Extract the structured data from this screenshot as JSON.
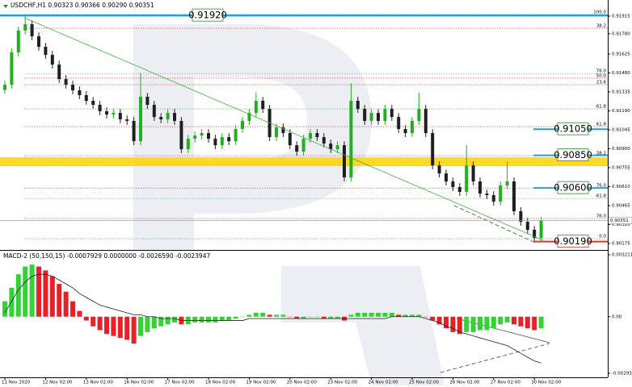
{
  "chart_data": [
    {
      "type": "candlestick",
      "title": "USDCHF,H1  0.90323 0.90366 0.90290 0.90351",
      "categories": [
        "11 Nov 2020",
        null,
        null,
        null,
        null,
        null,
        "12 Nov 02:00",
        null,
        null,
        null,
        null,
        null,
        "13 Nov 02:00",
        null,
        null,
        null,
        null,
        null,
        "16 Nov 02:00",
        null,
        null,
        null,
        null,
        null,
        "17 Nov 02:00",
        null,
        null,
        null,
        null,
        null,
        "18 Nov 02:00",
        null,
        null,
        null,
        null,
        null,
        "19 Nov 02:00",
        null,
        null,
        null,
        null,
        null,
        "20 Nov 02:00",
        null,
        null,
        null,
        null,
        null,
        "23 Nov 02:00",
        null,
        null,
        null,
        null,
        null,
        "24 Nov 02:00",
        null,
        null,
        null,
        null,
        null,
        "25 Nov 02:00",
        null,
        null,
        null,
        null,
        null,
        "26 Nov 02:00",
        null,
        null,
        null,
        null,
        null,
        "27 Nov 02:00",
        null,
        null,
        null,
        null,
        null,
        "30 Nov 02:00",
        null
      ],
      "open": [
        0.9135,
        0.9139,
        0.91637,
        0.91804,
        0.91853,
        0.9176,
        0.9168,
        0.91618,
        0.91544,
        0.91433,
        0.9139,
        0.91347,
        0.9131,
        0.91267,
        0.91236,
        0.91187,
        0.91162,
        0.91174,
        0.91125,
        0.91113,
        0.90958,
        0.91298,
        0.91236,
        0.91143,
        0.91125,
        0.91174,
        0.91113,
        0.90897,
        0.90977,
        0.91001,
        0.9102,
        0.90977,
        0.90927,
        0.90989,
        0.90958,
        0.91051,
        0.91113,
        0.91174,
        0.91267,
        0.91205,
        0.90989,
        0.91063,
        0.9102,
        0.90927,
        0.90878,
        0.90977,
        0.9102,
        0.90989,
        0.9094,
        0.90897,
        0.90927,
        0.90681,
        0.91267,
        0.91205,
        0.91113,
        0.91174,
        0.91113,
        0.91205,
        0.91143,
        0.91051,
        0.9102,
        0.91113,
        0.91205,
        0.9102,
        0.90773,
        0.90711,
        0.9065,
        0.90607,
        0.9057,
        0.90773,
        0.9065,
        0.90557,
        0.90545,
        0.90496,
        0.90619,
        0.9065,
        0.90422,
        0.90341,
        0.9028,
        0.90218
      ],
      "high": [
        0.9142,
        0.91667,
        0.91834,
        0.9192,
        0.91883,
        0.9179,
        0.9171,
        0.91648,
        0.91574,
        0.91463,
        0.9142,
        0.91377,
        0.9134,
        0.91297,
        0.91266,
        0.91217,
        0.91204,
        0.91204,
        0.91155,
        0.91143,
        0.9148,
        0.91328,
        0.91266,
        0.91173,
        0.91204,
        0.91204,
        0.91143,
        0.91007,
        0.91031,
        0.9105,
        0.9105,
        0.91007,
        0.91019,
        0.91019,
        0.91081,
        0.91143,
        0.91204,
        0.9133,
        0.91297,
        0.91235,
        0.91093,
        0.91093,
        0.9105,
        0.90957,
        0.91007,
        0.9105,
        0.9105,
        0.91019,
        0.9097,
        0.90957,
        0.90957,
        0.914,
        0.91297,
        0.91235,
        0.91204,
        0.91204,
        0.91235,
        0.91235,
        0.91173,
        0.91081,
        0.91143,
        0.9133,
        0.91235,
        0.9105,
        0.90803,
        0.90741,
        0.9068,
        0.90637,
        0.9093,
        0.90803,
        0.9068,
        0.90587,
        0.90575,
        0.90649,
        0.908,
        0.9068,
        0.90452,
        0.90371,
        0.9031,
        0.90381
      ],
      "low": [
        0.9132,
        0.9136,
        0.91607,
        0.91774,
        0.9173,
        0.9165,
        0.91588,
        0.91514,
        0.91403,
        0.9136,
        0.91317,
        0.9128,
        0.91237,
        0.91206,
        0.91157,
        0.91132,
        0.91132,
        0.91095,
        0.91083,
        0.90928,
        0.90928,
        0.91206,
        0.91113,
        0.91095,
        0.91095,
        0.91083,
        0.90867,
        0.90867,
        0.90947,
        0.90971,
        0.90947,
        0.90897,
        0.90897,
        0.90928,
        0.90928,
        0.91021,
        0.91083,
        0.91144,
        0.91175,
        0.90959,
        0.90959,
        0.9099,
        0.90897,
        0.90848,
        0.90848,
        0.90947,
        0.90959,
        0.9091,
        0.90867,
        0.90867,
        0.90651,
        0.90651,
        0.91175,
        0.91083,
        0.91083,
        0.91083,
        0.91083,
        0.91113,
        0.91021,
        0.9099,
        0.9099,
        0.91083,
        0.9099,
        0.90743,
        0.90681,
        0.9062,
        0.90577,
        0.9054,
        0.9054,
        0.9062,
        0.90527,
        0.90515,
        0.90466,
        0.90466,
        0.90589,
        0.90392,
        0.90311,
        0.9025,
        0.9019,
        0.90188
      ],
      "close": [
        0.9139,
        0.91637,
        0.91804,
        0.91853,
        0.9176,
        0.9168,
        0.91618,
        0.91544,
        0.91433,
        0.9139,
        0.91347,
        0.9131,
        0.91267,
        0.91236,
        0.91187,
        0.91162,
        0.91174,
        0.91125,
        0.91113,
        0.90958,
        0.91298,
        0.91236,
        0.91143,
        0.91125,
        0.91174,
        0.91113,
        0.90897,
        0.90977,
        0.91001,
        0.9102,
        0.90977,
        0.90927,
        0.90989,
        0.90958,
        0.91051,
        0.91113,
        0.91174,
        0.91267,
        0.91205,
        0.90989,
        0.91063,
        0.9102,
        0.90927,
        0.90878,
        0.90977,
        0.9102,
        0.90989,
        0.9094,
        0.90897,
        0.90927,
        0.90681,
        0.91267,
        0.91205,
        0.91113,
        0.91174,
        0.91113,
        0.91205,
        0.91143,
        0.91051,
        0.9102,
        0.91113,
        0.91205,
        0.9102,
        0.90773,
        0.90711,
        0.9065,
        0.90607,
        0.9057,
        0.90773,
        0.9065,
        0.90557,
        0.90545,
        0.90496,
        0.90619,
        0.9065,
        0.90422,
        0.90341,
        0.9028,
        0.90218,
        0.90351
      ],
      "up_color": "#20b020",
      "down_color": "#202020",
      "ylim": [
        0.90126,
        0.92038
      ],
      "yticks": [
        0.91915,
        {
          "value": 0.9178,
          "label": "0.91780"
        },
        0.91625,
        {
          "value": 0.9148,
          "label": "0.91480"
        },
        0.91335,
        {
          "value": 0.9119,
          "label": "0.91190"
        },
        0.91045,
        {
          "value": 0.909,
          "label": "0.90900"
        },
        0.90755,
        {
          "value": 0.9061,
          "label": "0.90610"
        },
        0.90465,
        {
          "value": 0.9032,
          "label": "0.90320"
        },
        0.90175
      ],
      "bid": 0.90351,
      "zone": [
        0.90767,
        0.90835
      ],
      "levels": [
        {
          "value": 0.9192,
          "label": "0.91920",
          "color": "#1ea0d8"
        },
        {
          "value": 0.9105,
          "label": "0.91050",
          "color": "#1ea0d8"
        },
        {
          "value": 0.9085,
          "label": "0.90850",
          "color": "#1ea0d8"
        },
        {
          "value": 0.906,
          "label": "0.90600",
          "color": "#1ea0d8"
        },
        {
          "value": 0.9019,
          "label": "0.90190",
          "color": "#e03030"
        }
      ],
      "fib_levels": [
        {
          "value": 0.91927,
          "label": "100.0",
          "color": "#3cb43c"
        },
        {
          "value": 0.91822,
          "label": "38.2",
          "color": "#e03030"
        },
        {
          "value": 0.91476,
          "label": "76.0",
          "color": "#3cb43c"
        },
        {
          "value": 0.9144,
          "label": "50.0",
          "color": "#e03030"
        },
        {
          "value": 0.9139,
          "label": "23.6",
          "color": "#e03030"
        },
        {
          "value": 0.91205,
          "label": "61.8",
          "color": "#3cb43c"
        },
        {
          "value": 0.91069,
          "label": "61.8",
          "color": "#e03030"
        },
        {
          "value": 0.90847,
          "label": "38.2",
          "color": "#e03030"
        },
        {
          "value": 0.906,
          "label": "76.0",
          "color": "#e03030"
        },
        {
          "value": 0.9052,
          "label": "61.8",
          "color": "#3cb43c"
        },
        {
          "value": 0.90366,
          "label": "76.0",
          "color": "#e03030"
        },
        {
          "value": 0.90212,
          "label": "0.0",
          "color": "#3cb43c"
        }
      ]
    },
    {
      "type": "bar",
      "title": "MACD-2 (50,150,15) -0.0007929 0.0000000 -0.0026590 -0.0023947",
      "values": [
        0.0008,
        0.0015,
        0.0022,
        0.0026,
        0.0027,
        0.0026,
        0.0024,
        0.0021,
        0.0017,
        0.0013,
        0.0008,
        0.0003,
        -0.0002,
        -0.0005,
        -0.0007,
        -0.0009,
        -0.001,
        -0.0011,
        -0.0012,
        -0.0014,
        -0.001,
        -0.0008,
        -0.0006,
        -0.0005,
        -0.0004,
        -0.0003,
        -0.0004,
        -0.0004,
        -0.0003,
        -0.0003,
        -0.0003,
        -0.0003,
        -0.0002,
        -0.0002,
        -0.0001,
        0,
        0.0001,
        0.0002,
        0.0002,
        0.0001,
        0.0001,
        0.0001,
        0,
        -0.0001,
        -0.0001,
        0,
        0,
        -0.0001,
        -0.0001,
        -0.0001,
        -0.0002,
        0.0001,
        0.0002,
        0.0002,
        0.0002,
        0.0002,
        0.0002,
        0.0002,
        0.0001,
        0.0001,
        0.0001,
        0.0001,
        0,
        -0.0002,
        -0.0004,
        -0.0006,
        -0.0008,
        -0.0009,
        -0.0008,
        -0.0008,
        -0.0007,
        -0.0007,
        -0.0006,
        -0.0004,
        -0.0003,
        -0.0004,
        -0.0005,
        -0.0006,
        -0.0007,
        -0.0006
      ],
      "line_values": [
        0.0002,
        0.0008,
        0.0014,
        0.0018,
        0.0021,
        0.0022,
        0.0022,
        0.0021,
        0.0019,
        0.0017,
        0.0015,
        0.0012,
        0.001,
        0.0008,
        0.0006,
        0.0005,
        0.0004,
        0.0003,
        0.0002,
        0.0001,
        0.0001,
        0,
        0,
        -0.0001,
        -0.0001,
        -0.0001,
        -0.0002,
        -0.0002,
        -0.0002,
        -0.0002,
        -0.0002,
        -0.0002,
        -0.0002,
        -0.0002,
        -0.0002,
        -0.0002,
        -0.0001,
        -0.0001,
        -0.0001,
        -0.0001,
        -0.0001,
        -0.0001,
        -0.0001,
        -0.0001,
        -0.0001,
        -0.0001,
        -0.0001,
        -0.0001,
        -0.0001,
        -0.0001,
        -0.0001,
        -0.0001,
        -0.0001,
        -0.0001,
        -0.0001,
        -0.0001,
        -0.0001,
        0,
        0,
        0,
        0,
        0,
        -0.0001,
        -0.0002,
        -0.0003,
        -0.0005,
        -0.0006,
        -0.0008,
        -0.0009,
        -0.001,
        -0.0011,
        -0.0012,
        -0.0013,
        -0.0014,
        -0.0015,
        -0.0017,
        -0.0019,
        -0.0021,
        -0.0023,
        -0.0024
      ],
      "up_color": "#34d334",
      "down_color": "#e82028",
      "line_color": "#202020",
      "ylim": [
        -0.002938,
        0.0032114
      ],
      "yticks": [
        0.0032114,
        {
          "value": 0,
          "label": "0.00"
        },
        -0.002938
      ]
    }
  ]
}
